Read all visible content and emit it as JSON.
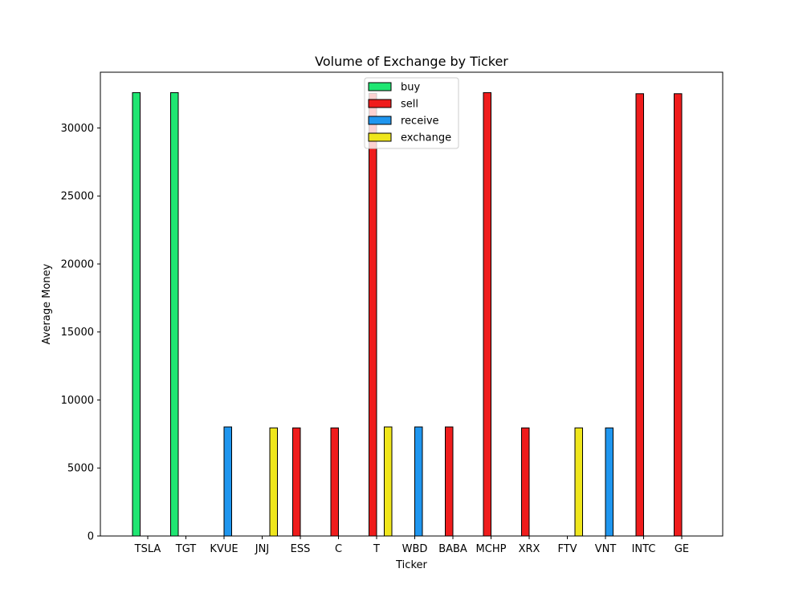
{
  "chart_data": {
    "type": "bar",
    "title": "Volume of Exchange by Ticker",
    "xlabel": "Ticker",
    "ylabel": "Average Money",
    "ylim": [
      0,
      34100
    ],
    "yticks": [
      0,
      5000,
      10000,
      15000,
      20000,
      25000,
      30000
    ],
    "categories": [
      "TSLA",
      "TGT",
      "KVUE",
      "JNJ",
      "ESS",
      "C",
      "T",
      "WBD",
      "BABA",
      "MCHP",
      "XRX",
      "FTV",
      "VNT",
      "INTC",
      "GE"
    ],
    "series": [
      {
        "name": "buy",
        "color": "#1fe672",
        "values": [
          32600,
          32600,
          0,
          0,
          0,
          0,
          0,
          0,
          0,
          0,
          0,
          0,
          0,
          0,
          0
        ]
      },
      {
        "name": "sell",
        "color": "#ef1c1c",
        "values": [
          0,
          0,
          0,
          0,
          7950,
          7950,
          32550,
          0,
          8020,
          32600,
          7950,
          0,
          0,
          32520,
          32520
        ]
      },
      {
        "name": "receive",
        "color": "#1f96ef",
        "values": [
          0,
          0,
          8020,
          0,
          0,
          0,
          0,
          8020,
          0,
          0,
          0,
          0,
          7950,
          0,
          0
        ]
      },
      {
        "name": "exchange",
        "color": "#efe61c",
        "values": [
          0,
          0,
          0,
          7950,
          0,
          0,
          8020,
          0,
          0,
          0,
          0,
          7950,
          0,
          0,
          0
        ]
      }
    ],
    "legend": "upper center",
    "grid": false
  }
}
